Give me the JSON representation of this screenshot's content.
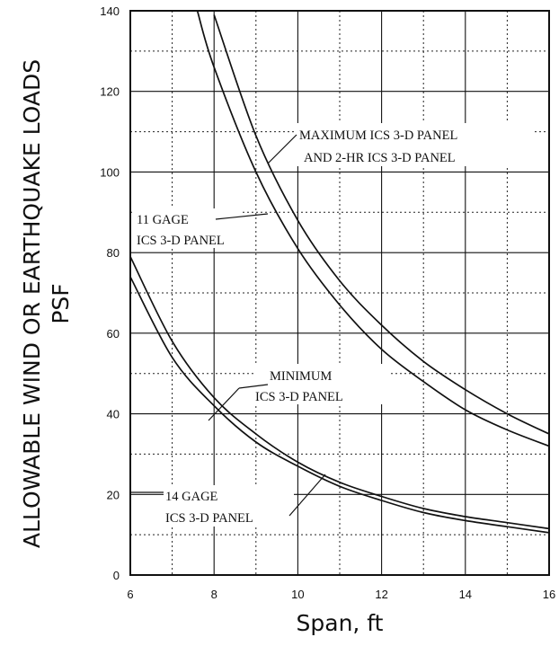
{
  "chart_data": {
    "type": "line",
    "xlabel": "Span, ft",
    "ylabel_line1": "ALLOWABLE WIND OR EARTHQUAKE LOADS",
    "ylabel_line2": "PSF",
    "xlim": [
      6,
      16
    ],
    "ylim": [
      0,
      140
    ],
    "x_ticks": [
      "6",
      "8",
      "10",
      "12",
      "14",
      "16"
    ],
    "y_ticks": [
      "0",
      "20",
      "40",
      "60",
      "80",
      "100",
      "120",
      "140"
    ],
    "grid": true,
    "series": [
      {
        "name": "MAXIMUM ICS 3-D PANEL AND 2-HR ICS 3-D PANEL",
        "x": [
          8,
          9,
          10,
          11,
          12,
          13,
          14,
          15,
          16
        ],
        "y": [
          139,
          109,
          88,
          73,
          62,
          53,
          46,
          40,
          35
        ]
      },
      {
        "name": "11 GAGE ICS 3-D PANEL",
        "x": [
          7.6,
          8,
          9,
          10,
          11,
          12,
          13,
          14,
          15,
          16
        ],
        "y": [
          140,
          126,
          100,
          81,
          67,
          56,
          48,
          41,
          36,
          32
        ]
      },
      {
        "name": "MINIMUM ICS 3-D PANEL",
        "x": [
          6,
          7,
          8,
          9,
          10,
          11,
          12,
          13,
          14,
          15,
          16
        ],
        "y": [
          79,
          58,
          44,
          35,
          28,
          23,
          19.5,
          16.5,
          14.5,
          13,
          11.5
        ]
      },
      {
        "name": "14 GAGE ICS 3-D PANEL",
        "x": [
          6,
          7,
          8,
          9,
          10,
          11,
          12,
          13,
          14,
          15,
          16
        ],
        "y": [
          74,
          54,
          42,
          33,
          27,
          22,
          18.5,
          15.5,
          13.5,
          12,
          10.5
        ]
      }
    ],
    "annotations": [
      {
        "lines": [
          "MAXIMUM ICS 3-D PANEL",
          "AND 2-HR ICS 3-D PANEL"
        ]
      },
      {
        "lines": [
          "11 GAGE",
          "ICS 3-D PANEL"
        ]
      },
      {
        "lines": [
          "MINIMUM",
          "ICS 3-D PANEL"
        ]
      },
      {
        "lines": [
          "14 GAGE",
          "ICS 3-D PANEL"
        ]
      }
    ]
  }
}
